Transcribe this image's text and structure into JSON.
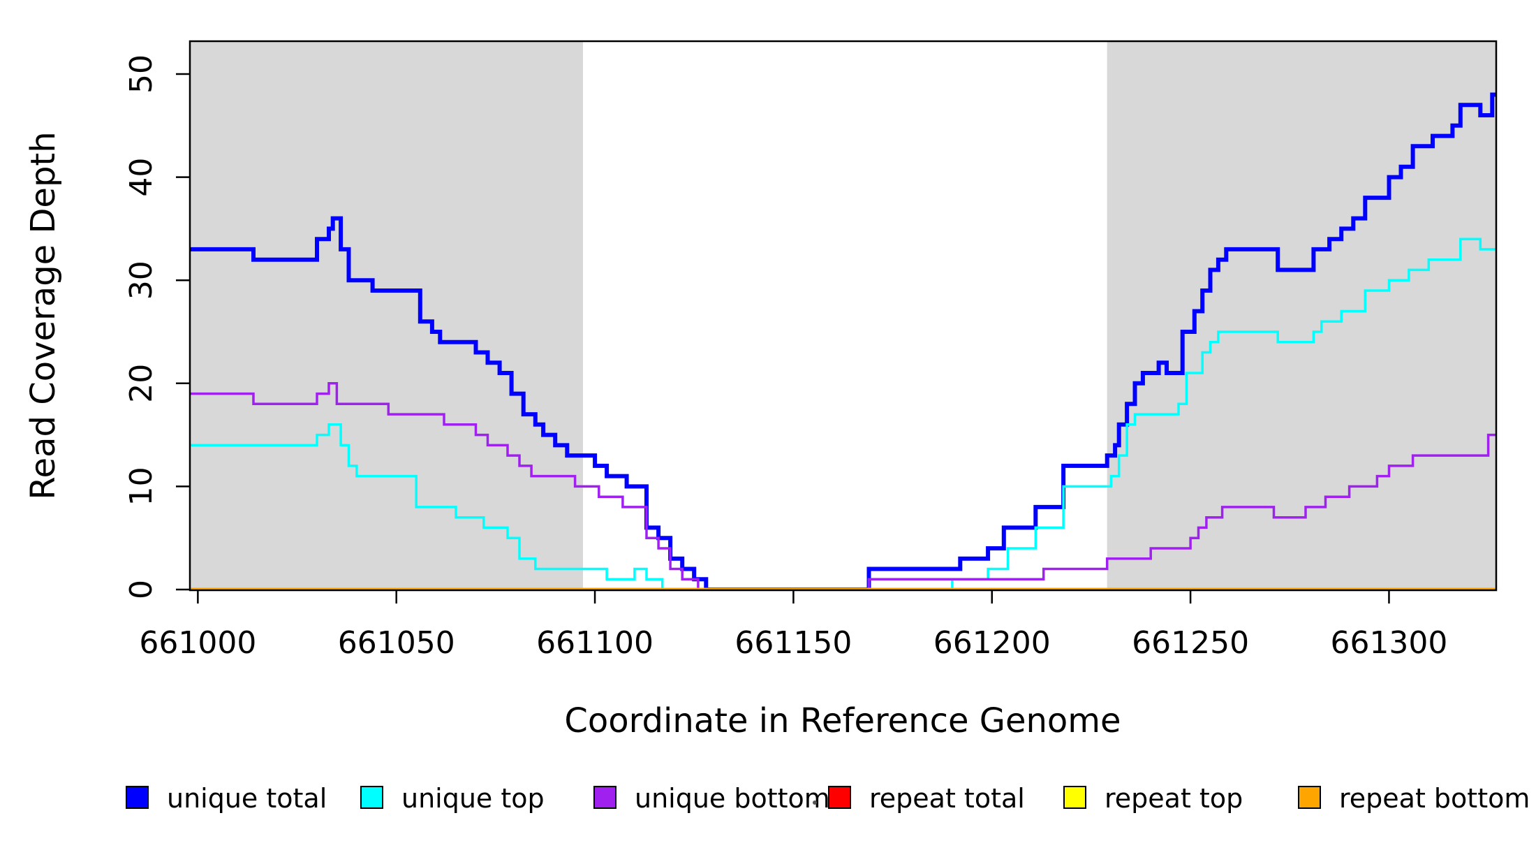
{
  "figure": {
    "title": "",
    "xlabel": "Coordinate in Reference Genome",
    "ylabel": "Read Coverage Depth"
  },
  "chart_data": {
    "type": "line",
    "subtype": "step",
    "title": "",
    "xlabel": "Coordinate in Reference Genome",
    "ylabel": "Read Coverage Depth",
    "xlim": [
      660998,
      661327
    ],
    "ylim": [
      0,
      53
    ],
    "xticks": [
      661000,
      661050,
      661100,
      661150,
      661200,
      661250,
      661300
    ],
    "yticks": [
      0,
      10,
      20,
      30,
      40,
      50
    ],
    "grid": false,
    "legend_position": "bottom",
    "plot_background": "#FFFFFF",
    "shaded_band_color": "#D8D8D8",
    "shaded_regions": [
      {
        "x0": 660998,
        "x1": 661097
      },
      {
        "x0": 661229,
        "x1": 661327
      }
    ],
    "series": [
      {
        "name": "unique total",
        "color": "#0000FF",
        "line_width": 6,
        "steps": [
          [
            660998,
            33
          ],
          [
            661014,
            32
          ],
          [
            661030,
            34
          ],
          [
            661033,
            35
          ],
          [
            661034,
            36
          ],
          [
            661036,
            33
          ],
          [
            661038,
            30
          ],
          [
            661044,
            29
          ],
          [
            661056,
            26
          ],
          [
            661059,
            25
          ],
          [
            661061,
            24
          ],
          [
            661070,
            23
          ],
          [
            661073,
            22
          ],
          [
            661076,
            21
          ],
          [
            661079,
            19
          ],
          [
            661082,
            17
          ],
          [
            661085,
            16
          ],
          [
            661087,
            15
          ],
          [
            661090,
            14
          ],
          [
            661093,
            13
          ],
          [
            661100,
            12
          ],
          [
            661103,
            11
          ],
          [
            661108,
            10
          ],
          [
            661113,
            6
          ],
          [
            661116,
            5
          ],
          [
            661119,
            3
          ],
          [
            661122,
            2
          ],
          [
            661125,
            1
          ],
          [
            661128,
            0
          ],
          [
            661169,
            2
          ],
          [
            661192,
            3
          ],
          [
            661199,
            4
          ],
          [
            661203,
            6
          ],
          [
            661211,
            8
          ],
          [
            661218,
            12
          ],
          [
            661229,
            13
          ],
          [
            661231,
            14
          ],
          [
            661232,
            16
          ],
          [
            661234,
            18
          ],
          [
            661236,
            20
          ],
          [
            661238,
            21
          ],
          [
            661242,
            22
          ],
          [
            661244,
            21
          ],
          [
            661248,
            25
          ],
          [
            661251,
            27
          ],
          [
            661253,
            29
          ],
          [
            661255,
            31
          ],
          [
            661257,
            32
          ],
          [
            661259,
            33
          ],
          [
            661272,
            31
          ],
          [
            661281,
            33
          ],
          [
            661285,
            34
          ],
          [
            661288,
            35
          ],
          [
            661291,
            36
          ],
          [
            661294,
            38
          ],
          [
            661300,
            40
          ],
          [
            661303,
            41
          ],
          [
            661306,
            43
          ],
          [
            661311,
            44
          ],
          [
            661316,
            45
          ],
          [
            661318,
            47
          ],
          [
            661323,
            46
          ],
          [
            661326,
            48
          ]
        ]
      },
      {
        "name": "unique top",
        "color": "#00FFFF",
        "line_width": 3.5,
        "steps": [
          [
            660998,
            14
          ],
          [
            661030,
            15
          ],
          [
            661033,
            16
          ],
          [
            661036,
            14
          ],
          [
            661038,
            12
          ],
          [
            661040,
            11
          ],
          [
            661055,
            8
          ],
          [
            661065,
            7
          ],
          [
            661072,
            6
          ],
          [
            661078,
            5
          ],
          [
            661081,
            3
          ],
          [
            661085,
            2
          ],
          [
            661103,
            1
          ],
          [
            661110,
            2
          ],
          [
            661113,
            1
          ],
          [
            661117,
            0
          ],
          [
            661190,
            1
          ],
          [
            661199,
            2
          ],
          [
            661204,
            4
          ],
          [
            661211,
            6
          ],
          [
            661218,
            10
          ],
          [
            661230,
            11
          ],
          [
            661232,
            13
          ],
          [
            661234,
            16
          ],
          [
            661236,
            17
          ],
          [
            661247,
            18
          ],
          [
            661249,
            21
          ],
          [
            661253,
            23
          ],
          [
            661255,
            24
          ],
          [
            661257,
            25
          ],
          [
            661272,
            24
          ],
          [
            661281,
            25
          ],
          [
            661283,
            26
          ],
          [
            661288,
            27
          ],
          [
            661294,
            29
          ],
          [
            661300,
            30
          ],
          [
            661305,
            31
          ],
          [
            661310,
            32
          ],
          [
            661318,
            34
          ],
          [
            661323,
            33
          ]
        ]
      },
      {
        "name": "unique bottom",
        "color": "#A020F0",
        "line_width": 3.5,
        "steps": [
          [
            660998,
            19
          ],
          [
            661014,
            18
          ],
          [
            661030,
            19
          ],
          [
            661033,
            20
          ],
          [
            661035,
            18
          ],
          [
            661048,
            17
          ],
          [
            661062,
            16
          ],
          [
            661070,
            15
          ],
          [
            661073,
            14
          ],
          [
            661078,
            13
          ],
          [
            661081,
            12
          ],
          [
            661084,
            11
          ],
          [
            661095,
            10
          ],
          [
            661101,
            9
          ],
          [
            661107,
            8
          ],
          [
            661113,
            5
          ],
          [
            661116,
            4
          ],
          [
            661119,
            2
          ],
          [
            661122,
            1
          ],
          [
            661126,
            0
          ],
          [
            661169,
            1
          ],
          [
            661213,
            2
          ],
          [
            661229,
            3
          ],
          [
            661240,
            4
          ],
          [
            661250,
            5
          ],
          [
            661252,
            6
          ],
          [
            661254,
            7
          ],
          [
            661258,
            8
          ],
          [
            661271,
            7
          ],
          [
            661279,
            8
          ],
          [
            661284,
            9
          ],
          [
            661290,
            10
          ],
          [
            661297,
            11
          ],
          [
            661300,
            12
          ],
          [
            661306,
            13
          ],
          [
            661325,
            15
          ]
        ]
      },
      {
        "name": "repeat total",
        "color": "#FF0000",
        "line_width": 3.5,
        "steps": [
          [
            660998,
            0
          ]
        ]
      },
      {
        "name": "repeat top",
        "color": "#FFFF00",
        "line_width": 3.5,
        "steps": [
          [
            660998,
            0
          ]
        ]
      },
      {
        "name": "repeat bottom",
        "color": "#FFA500",
        "line_width": 5,
        "steps": [
          [
            660998,
            0
          ]
        ]
      }
    ]
  }
}
